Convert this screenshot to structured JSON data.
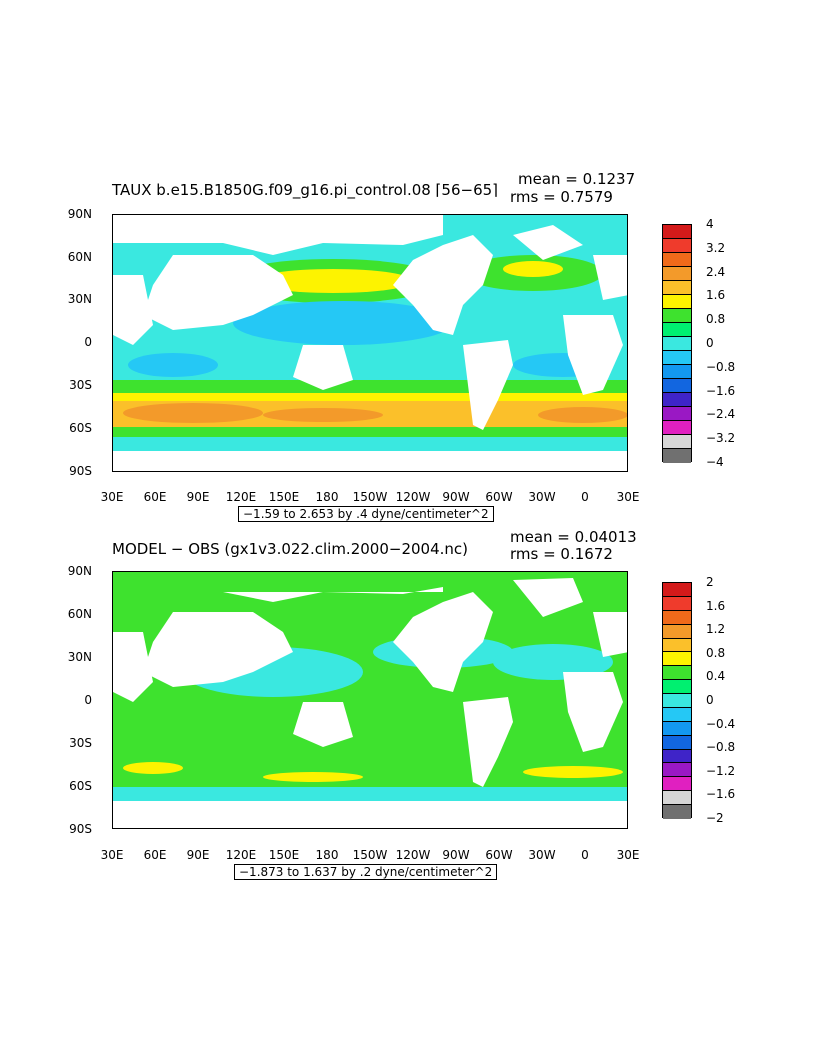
{
  "panels": [
    {
      "title": "TAUX b.e15.B1850G.f09_g16.pi_control.08 ⌈56−65⌉",
      "mean": "mean = 0.1237",
      "rms": "rms = 0.7579",
      "info": "−1.59 to 2.653 by .4 dyne/centimeter^2",
      "ylabels": [
        "90N",
        "60N",
        "30N",
        "0",
        "30S",
        "60S",
        "90S"
      ],
      "xlabels": [
        "30E",
        "60E",
        "90E",
        "120E",
        "150E",
        "180",
        "150W",
        "120W",
        "90W",
        "60W",
        "30W",
        "0",
        "30E"
      ],
      "colorbar_labels": [
        "4",
        "3.2",
        "2.4",
        "1.6",
        "0.8",
        "0",
        "−0.8",
        "−1.6",
        "−2.4",
        "−3.2",
        "−4"
      ],
      "colorbar_colors": [
        "#d41a1a",
        "#ef3b2c",
        "#f06a1a",
        "#f39a2a",
        "#fbc02a",
        "#fdf300",
        "#3ee22e",
        "#00f070",
        "#3ae8e0",
        "#25c8f5",
        "#1398f0",
        "#1266e0",
        "#3f24c8",
        "#9a18c4",
        "#e020c0",
        "#d6d6d6",
        "#707070"
      ]
    },
    {
      "title": "MODEL − OBS (gx1v3.022.clim.2000−2004.nc)",
      "mean": "mean = 0.04013",
      "rms": "rms = 0.1672",
      "info": "−1.873 to 1.637 by .2 dyne/centimeter^2",
      "ylabels": [
        "90N",
        "60N",
        "30N",
        "0",
        "30S",
        "60S",
        "90S"
      ],
      "xlabels": [
        "30E",
        "60E",
        "90E",
        "120E",
        "150E",
        "180",
        "150W",
        "120W",
        "90W",
        "60W",
        "30W",
        "0",
        "30E"
      ],
      "colorbar_labels": [
        "2",
        "1.6",
        "1.2",
        "0.8",
        "0.4",
        "0",
        "−0.4",
        "−0.8",
        "−1.2",
        "−1.6",
        "−2"
      ],
      "colorbar_colors": [
        "#d41a1a",
        "#ef3b2c",
        "#f06a1a",
        "#f39a2a",
        "#fbc02a",
        "#fdf300",
        "#3ee22e",
        "#00f070",
        "#3ae8e0",
        "#25c8f5",
        "#1398f0",
        "#1266e0",
        "#3f24c8",
        "#9a18c4",
        "#e020c0",
        "#d6d6d6",
        "#707070"
      ]
    }
  ]
}
